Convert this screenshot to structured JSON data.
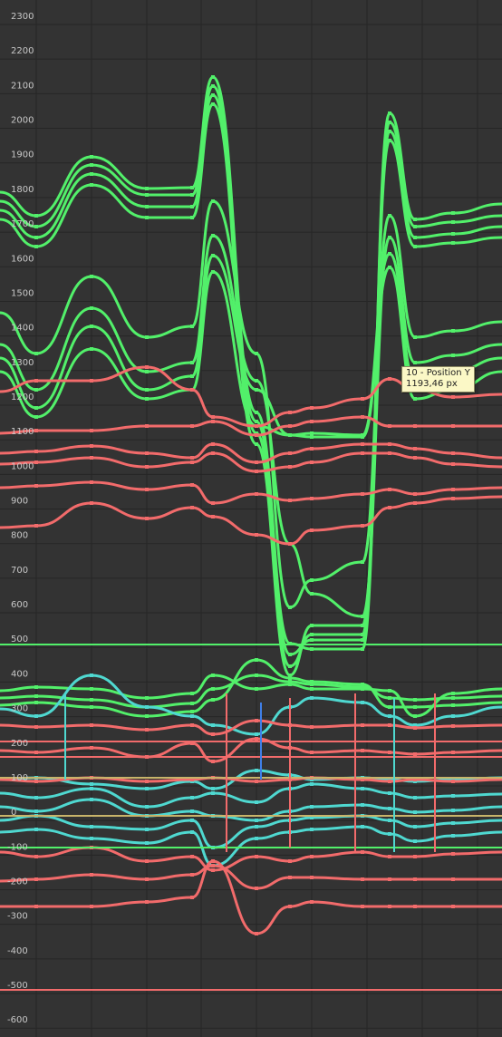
{
  "axis_ticks": [
    "2300",
    "2200",
    "2100",
    "2000",
    "1900",
    "1800",
    "1700",
    "1600",
    "1500",
    "1400",
    "1300",
    "1200",
    "1100",
    "1000",
    "900",
    "800",
    "700",
    "600",
    "500",
    "400",
    "300",
    "200",
    "100",
    "0",
    "-100",
    "-200",
    "-300",
    "-400",
    "-500",
    "-600"
  ],
  "tooltip": {
    "title": "10 - Position Y",
    "value": "1193,46 px"
  },
  "colors": {
    "background": "#333333",
    "grid": "#262626",
    "position_y_curves": "#52f06a",
    "position_x_curves": "#f26b6b",
    "other_curves": "#4fd8d0",
    "blue_curve": "#3f7fe8",
    "tooltip_bg": "#fbf8c6"
  }
}
